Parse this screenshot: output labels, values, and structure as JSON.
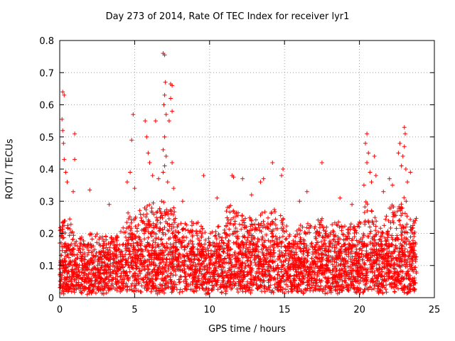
{
  "chart_data": {
    "type": "scatter",
    "title": "Day 273 of 2014, Rate Of TEC Index for receiver lyr1",
    "xlabel": "GPS time / hours",
    "ylabel": "ROTI / TECUs",
    "xlim": [
      0,
      25
    ],
    "ylim": [
      0,
      0.8
    ],
    "xticks": [
      0,
      5,
      10,
      15,
      20,
      25
    ],
    "yticks": [
      0,
      0.1,
      0.2,
      0.3,
      0.4,
      0.5,
      0.6,
      0.7,
      0.8
    ],
    "xtick_labels": [
      "0",
      "5",
      "10",
      "15",
      "20",
      "25"
    ],
    "ytick_labels": [
      "0",
      "0.1",
      "0.2",
      "0.3",
      "0.4",
      "0.5",
      "0.6",
      "0.7",
      "0.8"
    ],
    "grid": true,
    "marker": "+",
    "series_color": "#ff0000",
    "x_data_range": [
      0,
      23.8
    ],
    "baseline_band": [
      0.02,
      0.25
    ],
    "spikes": [
      {
        "x": 0.2,
        "y": 0.64
      },
      {
        "x": 0.3,
        "y": 0.63
      },
      {
        "x": 0.15,
        "y": 0.555
      },
      {
        "x": 0.2,
        "y": 0.52
      },
      {
        "x": 0.25,
        "y": 0.48
      },
      {
        "x": 0.3,
        "y": 0.43
      },
      {
        "x": 0.4,
        "y": 0.39
      },
      {
        "x": 0.5,
        "y": 0.36
      },
      {
        "x": 1.0,
        "y": 0.51
      },
      {
        "x": 1.0,
        "y": 0.43
      },
      {
        "x": 0.9,
        "y": 0.33
      },
      {
        "x": 2.0,
        "y": 0.335
      },
      {
        "x": 4.9,
        "y": 0.57
      },
      {
        "x": 4.8,
        "y": 0.49
      },
      {
        "x": 4.7,
        "y": 0.39
      },
      {
        "x": 4.5,
        "y": 0.36
      },
      {
        "x": 5.0,
        "y": 0.34
      },
      {
        "x": 5.7,
        "y": 0.55
      },
      {
        "x": 5.8,
        "y": 0.5
      },
      {
        "x": 5.9,
        "y": 0.45
      },
      {
        "x": 6.0,
        "y": 0.42
      },
      {
        "x": 6.2,
        "y": 0.38
      },
      {
        "x": 6.4,
        "y": 0.55
      },
      {
        "x": 6.6,
        "y": 0.37
      },
      {
        "x": 6.8,
        "y": 0.3
      },
      {
        "x": 6.9,
        "y": 0.76
      },
      {
        "x": 7.0,
        "y": 0.755
      },
      {
        "x": 7.05,
        "y": 0.67
      },
      {
        "x": 7.0,
        "y": 0.63
      },
      {
        "x": 6.95,
        "y": 0.6
      },
      {
        "x": 7.1,
        "y": 0.57
      },
      {
        "x": 7.0,
        "y": 0.5
      },
      {
        "x": 6.9,
        "y": 0.46
      },
      {
        "x": 7.1,
        "y": 0.44
      },
      {
        "x": 7.0,
        "y": 0.41
      },
      {
        "x": 6.9,
        "y": 0.39
      },
      {
        "x": 7.2,
        "y": 0.36
      },
      {
        "x": 7.4,
        "y": 0.665
      },
      {
        "x": 7.5,
        "y": 0.66
      },
      {
        "x": 7.4,
        "y": 0.62
      },
      {
        "x": 7.5,
        "y": 0.58
      },
      {
        "x": 7.3,
        "y": 0.55
      },
      {
        "x": 7.5,
        "y": 0.42
      },
      {
        "x": 7.6,
        "y": 0.34
      },
      {
        "x": 9.6,
        "y": 0.38
      },
      {
        "x": 11.5,
        "y": 0.38
      },
      {
        "x": 11.6,
        "y": 0.375
      },
      {
        "x": 12.2,
        "y": 0.37
      },
      {
        "x": 13.4,
        "y": 0.36
      },
      {
        "x": 13.6,
        "y": 0.37
      },
      {
        "x": 14.2,
        "y": 0.42
      },
      {
        "x": 14.8,
        "y": 0.38
      },
      {
        "x": 14.9,
        "y": 0.4
      },
      {
        "x": 16.5,
        "y": 0.33
      },
      {
        "x": 17.5,
        "y": 0.42
      },
      {
        "x": 20.3,
        "y": 0.35
      },
      {
        "x": 20.5,
        "y": 0.51
      },
      {
        "x": 20.4,
        "y": 0.48
      },
      {
        "x": 20.6,
        "y": 0.45
      },
      {
        "x": 20.5,
        "y": 0.42
      },
      {
        "x": 20.7,
        "y": 0.39
      },
      {
        "x": 20.8,
        "y": 0.36
      },
      {
        "x": 21.0,
        "y": 0.44
      },
      {
        "x": 21.1,
        "y": 0.38
      },
      {
        "x": 22.0,
        "y": 0.37
      },
      {
        "x": 22.2,
        "y": 0.35
      },
      {
        "x": 22.7,
        "y": 0.48
      },
      {
        "x": 22.6,
        "y": 0.45
      },
      {
        "x": 22.8,
        "y": 0.41
      },
      {
        "x": 23.0,
        "y": 0.53
      },
      {
        "x": 23.05,
        "y": 0.51
      },
      {
        "x": 23.0,
        "y": 0.47
      },
      {
        "x": 22.9,
        "y": 0.44
      },
      {
        "x": 23.1,
        "y": 0.4
      },
      {
        "x": 23.4,
        "y": 0.39
      },
      {
        "x": 23.2,
        "y": 0.36
      },
      {
        "x": 3.3,
        "y": 0.29
      },
      {
        "x": 8.2,
        "y": 0.3
      },
      {
        "x": 10.5,
        "y": 0.31
      },
      {
        "x": 12.8,
        "y": 0.32
      },
      {
        "x": 16.0,
        "y": 0.3
      },
      {
        "x": 18.7,
        "y": 0.31
      },
      {
        "x": 19.5,
        "y": 0.29
      },
      {
        "x": 21.6,
        "y": 0.33
      }
    ],
    "activity_profile": [
      {
        "x": 0,
        "level": 0.24
      },
      {
        "x": 0.5,
        "level": 0.25
      },
      {
        "x": 1,
        "level": 0.21
      },
      {
        "x": 1.5,
        "level": 0.19
      },
      {
        "x": 2,
        "level": 0.2
      },
      {
        "x": 2.5,
        "level": 0.2
      },
      {
        "x": 3,
        "level": 0.2
      },
      {
        "x": 3.5,
        "level": 0.18
      },
      {
        "x": 4,
        "level": 0.2
      },
      {
        "x": 4.5,
        "level": 0.26
      },
      {
        "x": 5,
        "level": 0.26
      },
      {
        "x": 5.5,
        "level": 0.27
      },
      {
        "x": 6,
        "level": 0.3
      },
      {
        "x": 6.5,
        "level": 0.27
      },
      {
        "x": 7,
        "level": 0.3
      },
      {
        "x": 7.5,
        "level": 0.29
      },
      {
        "x": 8,
        "level": 0.25
      },
      {
        "x": 8.5,
        "level": 0.23
      },
      {
        "x": 9,
        "level": 0.24
      },
      {
        "x": 9.5,
        "level": 0.22
      },
      {
        "x": 10,
        "level": 0.2
      },
      {
        "x": 10.5,
        "level": 0.22
      },
      {
        "x": 11,
        "level": 0.27
      },
      {
        "x": 11.5,
        "level": 0.3
      },
      {
        "x": 12,
        "level": 0.26
      },
      {
        "x": 12.5,
        "level": 0.27
      },
      {
        "x": 13,
        "level": 0.23
      },
      {
        "x": 13.5,
        "level": 0.27
      },
      {
        "x": 14,
        "level": 0.27
      },
      {
        "x": 14.5,
        "level": 0.27
      },
      {
        "x": 15,
        "level": 0.25
      },
      {
        "x": 15.5,
        "level": 0.17
      },
      {
        "x": 16,
        "level": 0.22
      },
      {
        "x": 16.5,
        "level": 0.25
      },
      {
        "x": 17,
        "level": 0.22
      },
      {
        "x": 17.5,
        "level": 0.26
      },
      {
        "x": 18,
        "level": 0.22
      },
      {
        "x": 18.5,
        "level": 0.24
      },
      {
        "x": 19,
        "level": 0.22
      },
      {
        "x": 19.5,
        "level": 0.24
      },
      {
        "x": 20,
        "level": 0.24
      },
      {
        "x": 20.5,
        "level": 0.31
      },
      {
        "x": 21,
        "level": 0.27
      },
      {
        "x": 21.5,
        "level": 0.2
      },
      {
        "x": 22,
        "level": 0.3
      },
      {
        "x": 22.5,
        "level": 0.29
      },
      {
        "x": 23,
        "level": 0.32
      },
      {
        "x": 23.5,
        "level": 0.26
      },
      {
        "x": 23.8,
        "level": 0.24
      }
    ]
  }
}
